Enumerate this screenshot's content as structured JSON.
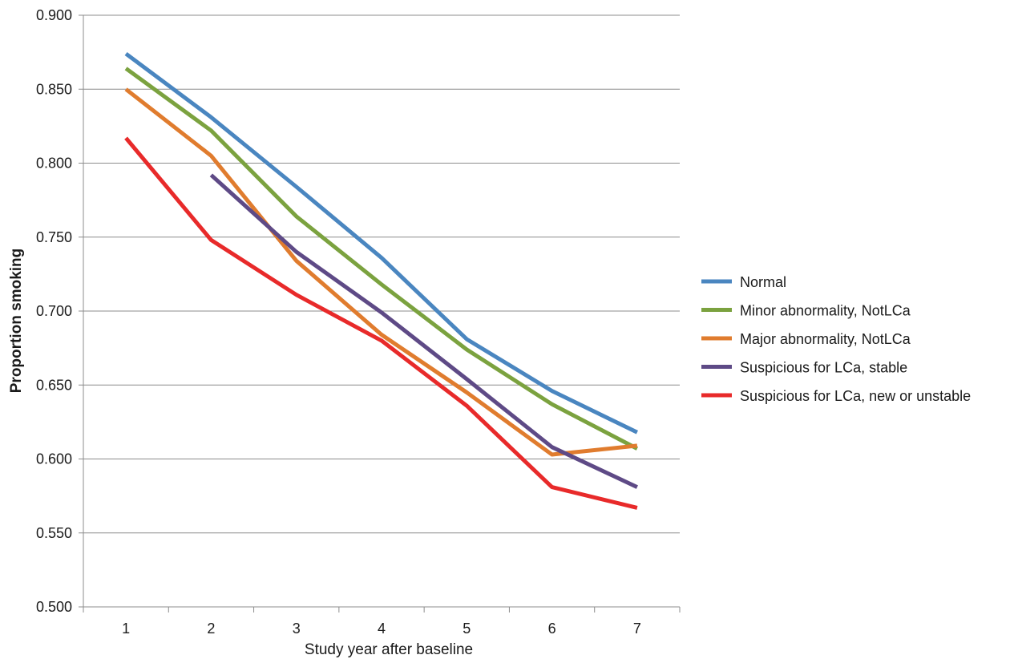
{
  "chart_data": {
    "type": "line",
    "title": "",
    "xlabel": "Study year after baseline",
    "ylabel": "Proportion smoking",
    "x": [
      1,
      2,
      3,
      4,
      5,
      6,
      7
    ],
    "x_tick_labels": [
      "1",
      "2",
      "3",
      "4",
      "5",
      "6",
      "7"
    ],
    "y_tick_labels": [
      "0.900",
      "0.850",
      "0.800",
      "0.750",
      "0.700",
      "0.650",
      "0.600",
      "0.550",
      "0.500"
    ],
    "y_ticks": [
      0.9,
      0.85,
      0.8,
      0.75,
      0.7,
      0.65,
      0.6,
      0.55,
      0.5
    ],
    "ylim": [
      0.5,
      0.9
    ],
    "grid": "horizontal",
    "legend_position": "right",
    "series": [
      {
        "name": "Normal",
        "color": "#4a86c0",
        "values": [
          0.874,
          0.831,
          0.784,
          0.736,
          0.681,
          0.646,
          0.618
        ]
      },
      {
        "name": "Minor abnormality, NotLCa",
        "color": "#7ba23f",
        "values": [
          0.864,
          0.822,
          0.764,
          0.718,
          0.674,
          0.637,
          0.607
        ]
      },
      {
        "name": "Major abnormality, NotLCa",
        "color": "#e07c2e",
        "values": [
          0.85,
          0.805,
          0.734,
          0.684,
          0.645,
          0.603,
          0.609
        ]
      },
      {
        "name": "Suspicious for LCa, stable",
        "color": "#5e4a86",
        "values": [
          null,
          0.792,
          0.74,
          0.699,
          0.654,
          0.608,
          0.581
        ]
      },
      {
        "name": "Suspicious for LCa, new or unstable",
        "color": "#e82a2a",
        "values": [
          0.817,
          0.748,
          0.711,
          0.68,
          0.636,
          0.581,
          0.567
        ]
      }
    ]
  }
}
